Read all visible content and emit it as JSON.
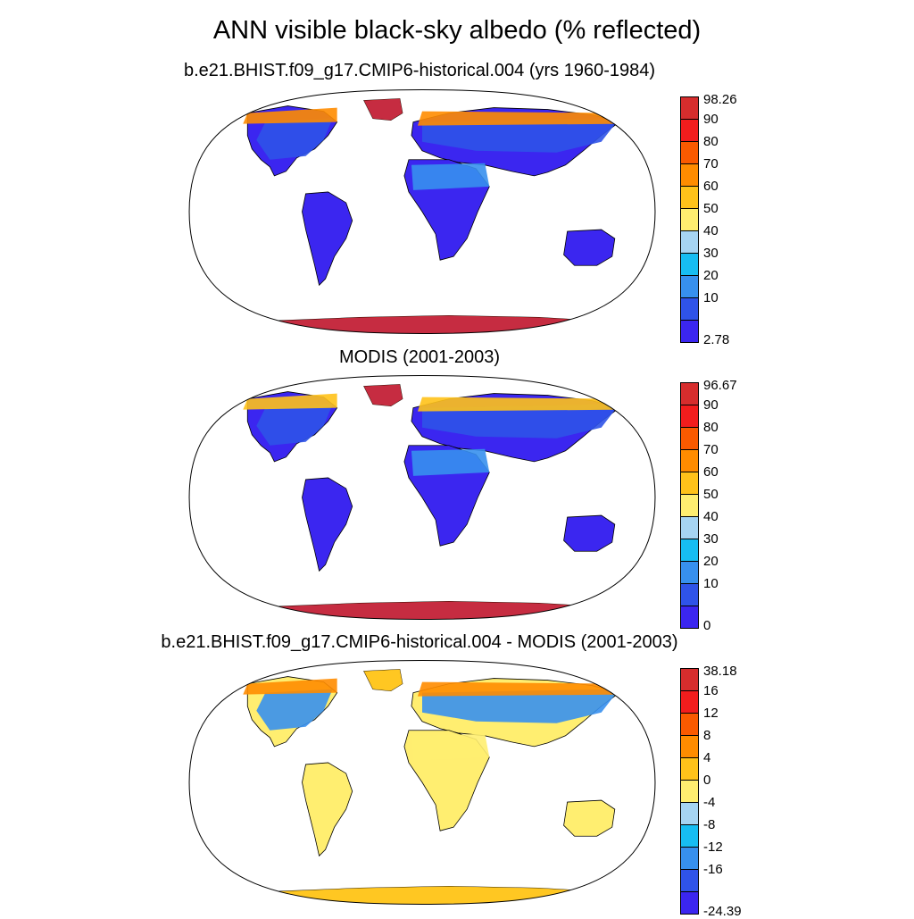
{
  "title": "ANN visible black-sky albedo (% reflected)",
  "panels": [
    {
      "title": "b.e21.BHIST.f09_g17.CMIP6-historical.004 (yrs 1960-1984)",
      "colorbar": {
        "labels": [
          "98.26",
          "90",
          "80",
          "70",
          "60",
          "50",
          "40",
          "30",
          "20",
          "10",
          "2.78"
        ],
        "colors": [
          "#d62d2d",
          "#f21d1d",
          "#fa5a00",
          "#ff8c00",
          "#ffc21a",
          "#ffee70",
          "#a6d4f2",
          "#17bdf2",
          "#3790ee",
          "#2f53e8",
          "#3b26f0"
        ]
      },
      "fields": {
        "background": "#3b26f0",
        "high_lat": "#2f53e8",
        "arctic_fringe": "#ff8c00",
        "desert": "#3790ee",
        "polar_ice": "#d62d2d"
      }
    },
    {
      "title": "MODIS (2001-2003)",
      "colorbar": {
        "labels": [
          "96.67",
          "90",
          "80",
          "70",
          "60",
          "50",
          "40",
          "30",
          "20",
          "10",
          "0"
        ],
        "colors": [
          "#d62d2d",
          "#f21d1d",
          "#fa5a00",
          "#ff8c00",
          "#ffc21a",
          "#ffee70",
          "#a6d4f2",
          "#17bdf2",
          "#3790ee",
          "#2f53e8",
          "#3b26f0"
        ]
      },
      "fields": {
        "background": "#3b26f0",
        "high_lat": "#2f53e8",
        "arctic_fringe": "#ffc21a",
        "desert": "#3790ee",
        "polar_ice": "#d62d2d"
      }
    },
    {
      "title": "b.e21.BHIST.f09_g17.CMIP6-historical.004 - MODIS (2001-2003)",
      "colorbar": {
        "labels": [
          "38.18",
          "16",
          "12",
          "8",
          "4",
          "0",
          "-4",
          "-8",
          "-12",
          "-16",
          "-24.39"
        ],
        "colors": [
          "#d62d2d",
          "#f21d1d",
          "#fa5a00",
          "#ff8c00",
          "#ffc21a",
          "#ffee70",
          "#a6d4f2",
          "#17bdf2",
          "#3790ee",
          "#2f53e8",
          "#3b26f0"
        ]
      },
      "fields": {
        "background": "#ffee70",
        "high_lat": "#3790ee",
        "arctic_fringe": "#ff8c00",
        "desert": "#ffee70",
        "polar_ice": "#ffc21a"
      }
    }
  ]
}
